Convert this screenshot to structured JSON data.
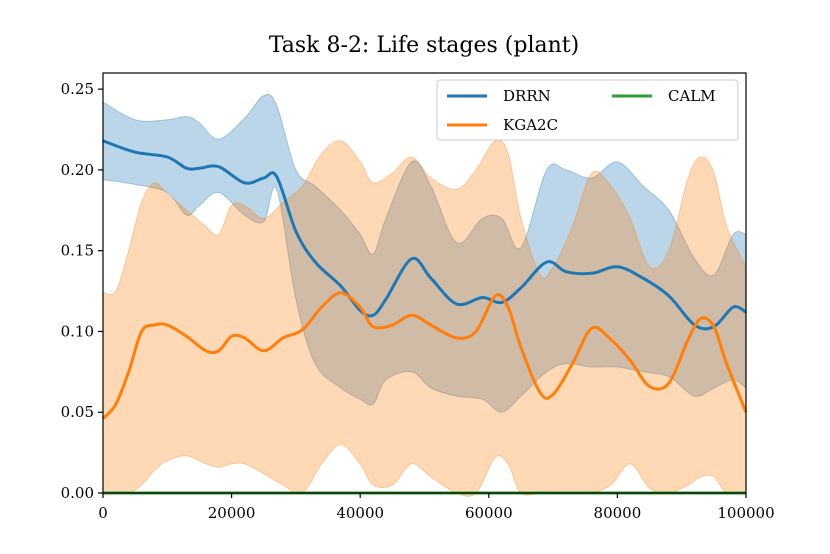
{
  "chart_data": {
    "type": "line",
    "title": "Task 8-2: Life stages (plant)",
    "xlabel": "",
    "ylabel": "",
    "xlim": [
      0,
      100000
    ],
    "ylim": [
      0,
      0.26
    ],
    "xticks": [
      0,
      20000,
      40000,
      60000,
      80000,
      100000
    ],
    "xtick_labels": [
      "0",
      "20000",
      "40000",
      "60000",
      "80000",
      "100000"
    ],
    "yticks": [
      0.0,
      0.05,
      0.1,
      0.15,
      0.2,
      0.25
    ],
    "ytick_labels": [
      "0.00",
      "0.05",
      "0.10",
      "0.15",
      "0.20",
      "0.25"
    ],
    "grid": false,
    "legend": "top-right, 2 columns",
    "series": [
      {
        "name": "DRRN",
        "color": "#1f77b4",
        "x": [
          0,
          5000,
          10000,
          13000,
          15000,
          18000,
          22000,
          25000,
          27000,
          30000,
          33000,
          37000,
          40000,
          42000,
          44000,
          48000,
          51000,
          55000,
          59000,
          62000,
          65000,
          69000,
          72000,
          76000,
          80000,
          84000,
          88000,
          92000,
          95000,
          98000,
          100000
        ],
        "mean": [
          0.218,
          0.211,
          0.208,
          0.201,
          0.201,
          0.202,
          0.192,
          0.195,
          0.196,
          0.162,
          0.143,
          0.128,
          0.113,
          0.11,
          0.12,
          0.145,
          0.133,
          0.117,
          0.121,
          0.118,
          0.127,
          0.143,
          0.137,
          0.136,
          0.14,
          0.133,
          0.122,
          0.104,
          0.103,
          0.115,
          0.112
        ],
        "lower": [
          0.194,
          0.191,
          0.186,
          0.172,
          0.178,
          0.186,
          0.172,
          0.168,
          0.188,
          0.12,
          0.08,
          0.065,
          0.058,
          0.055,
          0.07,
          0.075,
          0.065,
          0.06,
          0.058,
          0.05,
          0.06,
          0.075,
          0.08,
          0.078,
          0.078,
          0.075,
          0.072,
          0.06,
          0.065,
          0.07,
          0.065
        ],
        "upper": [
          0.242,
          0.231,
          0.231,
          0.233,
          0.229,
          0.219,
          0.232,
          0.246,
          0.24,
          0.2,
          0.19,
          0.175,
          0.16,
          0.148,
          0.17,
          0.205,
          0.19,
          0.155,
          0.17,
          0.17,
          0.152,
          0.2,
          0.2,
          0.195,
          0.205,
          0.19,
          0.175,
          0.145,
          0.135,
          0.16,
          0.16
        ]
      },
      {
        "name": "KGA2C",
        "color": "#ff7f0e",
        "x": [
          0,
          2000,
          4000,
          6000,
          8000,
          10000,
          13000,
          16000,
          18000,
          20000,
          22000,
          25000,
          28000,
          31000,
          34000,
          37000,
          40000,
          42000,
          45000,
          48000,
          51000,
          55000,
          58000,
          61000,
          63000,
          65000,
          68000,
          70000,
          73000,
          76000,
          79000,
          82000,
          85000,
          88000,
          91000,
          93000,
          95000,
          97000,
          100000
        ],
        "mean": [
          0.046,
          0.055,
          0.075,
          0.1,
          0.104,
          0.104,
          0.097,
          0.088,
          0.088,
          0.097,
          0.096,
          0.088,
          0.096,
          0.101,
          0.115,
          0.124,
          0.115,
          0.103,
          0.104,
          0.11,
          0.104,
          0.096,
          0.1,
          0.122,
          0.115,
          0.09,
          0.062,
          0.061,
          0.08,
          0.102,
          0.095,
          0.082,
          0.066,
          0.068,
          0.095,
          0.108,
          0.103,
          0.08,
          0.05
        ],
        "lower": [
          0.0,
          0.0,
          0.0,
          0.005,
          0.014,
          0.02,
          0.023,
          0.018,
          0.016,
          0.018,
          0.018,
          0.012,
          0.005,
          0.0,
          0.018,
          0.03,
          0.018,
          0.005,
          0.005,
          0.018,
          0.01,
          0.0,
          0.0,
          0.022,
          0.018,
          0.0,
          0.0,
          0.0,
          0.0,
          0.0,
          0.005,
          0.018,
          0.003,
          0.0,
          0.005,
          0.01,
          0.01,
          0.0,
          0.0
        ],
        "upper": [
          0.124,
          0.125,
          0.15,
          0.18,
          0.192,
          0.185,
          0.175,
          0.165,
          0.16,
          0.178,
          0.178,
          0.17,
          0.18,
          0.19,
          0.21,
          0.218,
          0.205,
          0.192,
          0.198,
          0.208,
          0.195,
          0.188,
          0.2,
          0.218,
          0.21,
          0.17,
          0.135,
          0.14,
          0.165,
          0.198,
          0.19,
          0.17,
          0.14,
          0.15,
          0.195,
          0.208,
          0.198,
          0.165,
          0.14
        ]
      },
      {
        "name": "CALM",
        "color": "#2ca02c",
        "x": [
          0,
          100000
        ],
        "mean": [
          0.0,
          0.0
        ],
        "lower": [
          0.0,
          0.0
        ],
        "upper": [
          0.0,
          0.0
        ]
      }
    ]
  }
}
